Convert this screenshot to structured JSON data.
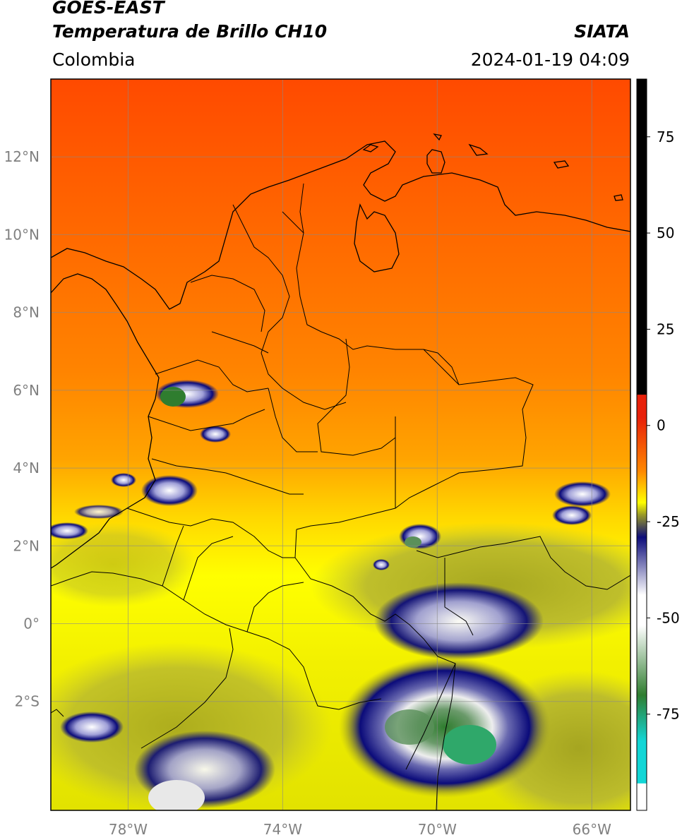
{
  "header": {
    "title_line1": "GOES-EAST",
    "title_line2": "Temperatura de Brillo CH10",
    "region": "Colombia",
    "agency": "SIATA",
    "datetime": "2024-01-19 04:09"
  },
  "map": {
    "lon_range": [
      -80,
      -65
    ],
    "lat_range": [
      -4.8,
      14
    ],
    "lon_ticks": [
      {
        "value": -78,
        "label": "78°W"
      },
      {
        "value": -74,
        "label": "74°W"
      },
      {
        "value": -70,
        "label": "70°W"
      },
      {
        "value": -66,
        "label": "66°W"
      }
    ],
    "lat_ticks": [
      {
        "value": 12,
        "label": "12°N"
      },
      {
        "value": 10,
        "label": "10°N"
      },
      {
        "value": 8,
        "label": "8°N"
      },
      {
        "value": 6,
        "label": "6°N"
      },
      {
        "value": 4,
        "label": "4°N"
      },
      {
        "value": 2,
        "label": "2°N"
      },
      {
        "value": 0,
        "label": "0°"
      },
      {
        "value": -2,
        "label": "2°S"
      }
    ],
    "gridlines": true
  },
  "colorbar": {
    "range": [
      -100,
      90
    ],
    "ticks": [
      {
        "value": 75,
        "label": "75"
      },
      {
        "value": 50,
        "label": "50"
      },
      {
        "value": 25,
        "label": "25"
      },
      {
        "value": 0,
        "label": "0"
      },
      {
        "value": -25,
        "label": "-25"
      },
      {
        "value": -50,
        "label": "-50"
      },
      {
        "value": -75,
        "label": "-75"
      }
    ],
    "colors": {
      "black": "#000000",
      "red": "#e8210a",
      "orange": "#ff8a00",
      "yellow": "#ffff00",
      "olive": "#9e9e24",
      "navy": "#0b0b7a",
      "white": "#ffffff",
      "green": "#2f7d2f",
      "cyan": "#12d6d6"
    }
  }
}
